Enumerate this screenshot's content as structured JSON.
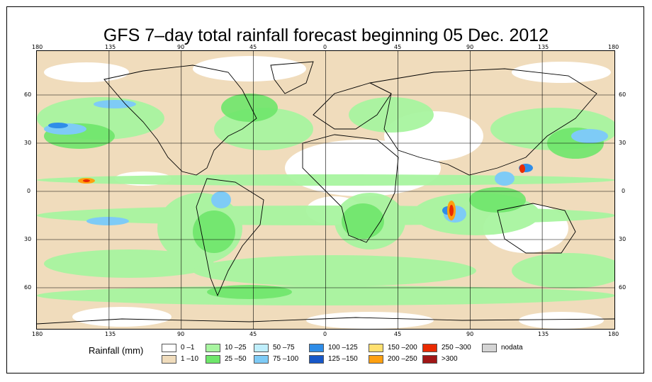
{
  "title": "GFS 7–day total rainfall forecast beginning 05 Dec. 2012",
  "lon_labels": [
    "180",
    "135",
    "90",
    "45",
    "0",
    "45",
    "90",
    "135",
    "180"
  ],
  "lat_labels": [
    "60",
    "30",
    "0",
    "30",
    "60"
  ],
  "legend": {
    "title": "Rainfall (mm)",
    "items": [
      {
        "label": "0 –1",
        "color": "#ffffff"
      },
      {
        "label": "1 –10",
        "color": "#f0dcbc"
      },
      {
        "label": "10 –25",
        "color": "#a8f5a0"
      },
      {
        "label": "25 –50",
        "color": "#6ee66a"
      },
      {
        "label": "50 –75",
        "color": "#bfeefc"
      },
      {
        "label": "75 –100",
        "color": "#7ecbf6"
      },
      {
        "label": "100 –125",
        "color": "#2f8de8"
      },
      {
        "label": "125 –150",
        "color": "#1657c8"
      },
      {
        "label": "150 –200",
        "color": "#ffe070"
      },
      {
        "label": "200 –250",
        "color": "#ffa010"
      },
      {
        "label": "250 –300",
        "color": "#ea2a00"
      },
      {
        ">": "",
        "label": ">300",
        "color": "#a01616"
      },
      {
        "label": "nodata",
        "color": "#d4d4d4"
      }
    ]
  }
}
